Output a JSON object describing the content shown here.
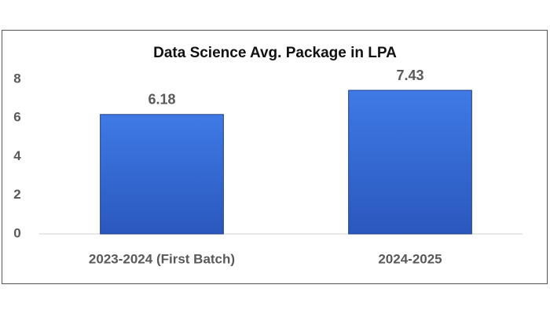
{
  "chart_data": {
    "type": "bar",
    "title": "Data Science Avg. Package in LPA",
    "categories": [
      "2023-2024 (First Batch)",
      "2024-2025"
    ],
    "values": [
      6.18,
      7.43
    ],
    "color": "#3a6fd8",
    "ylim": [
      0,
      8
    ],
    "yticks": [
      0,
      2,
      4,
      6,
      8
    ],
    "grid": false
  }
}
